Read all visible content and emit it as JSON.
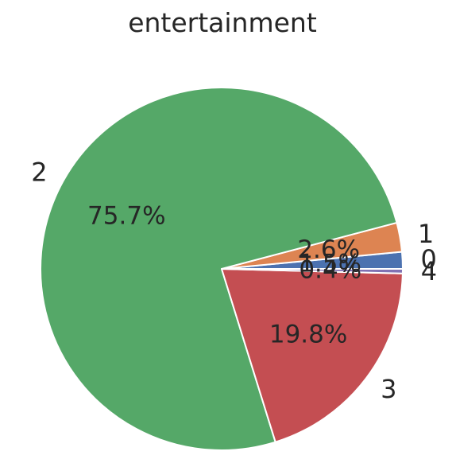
{
  "chart_data": {
    "type": "pie",
    "title": "entertainment",
    "start_angle_deg": 0,
    "direction": "counterclockwise",
    "slices": [
      {
        "label": "0",
        "value": 1.5,
        "pct_label": "1.5%",
        "color": "#4c72b0"
      },
      {
        "label": "1",
        "value": 2.6,
        "pct_label": "2.6%",
        "color": "#dd8452"
      },
      {
        "label": "2",
        "value": 75.7,
        "pct_label": "75.7%",
        "color": "#55a868"
      },
      {
        "label": "3",
        "value": 19.8,
        "pct_label": "19.8%",
        "color": "#c44e52"
      },
      {
        "label": "4",
        "value": 0.4,
        "pct_label": "0.4%",
        "color": "#8172b3"
      }
    ]
  }
}
